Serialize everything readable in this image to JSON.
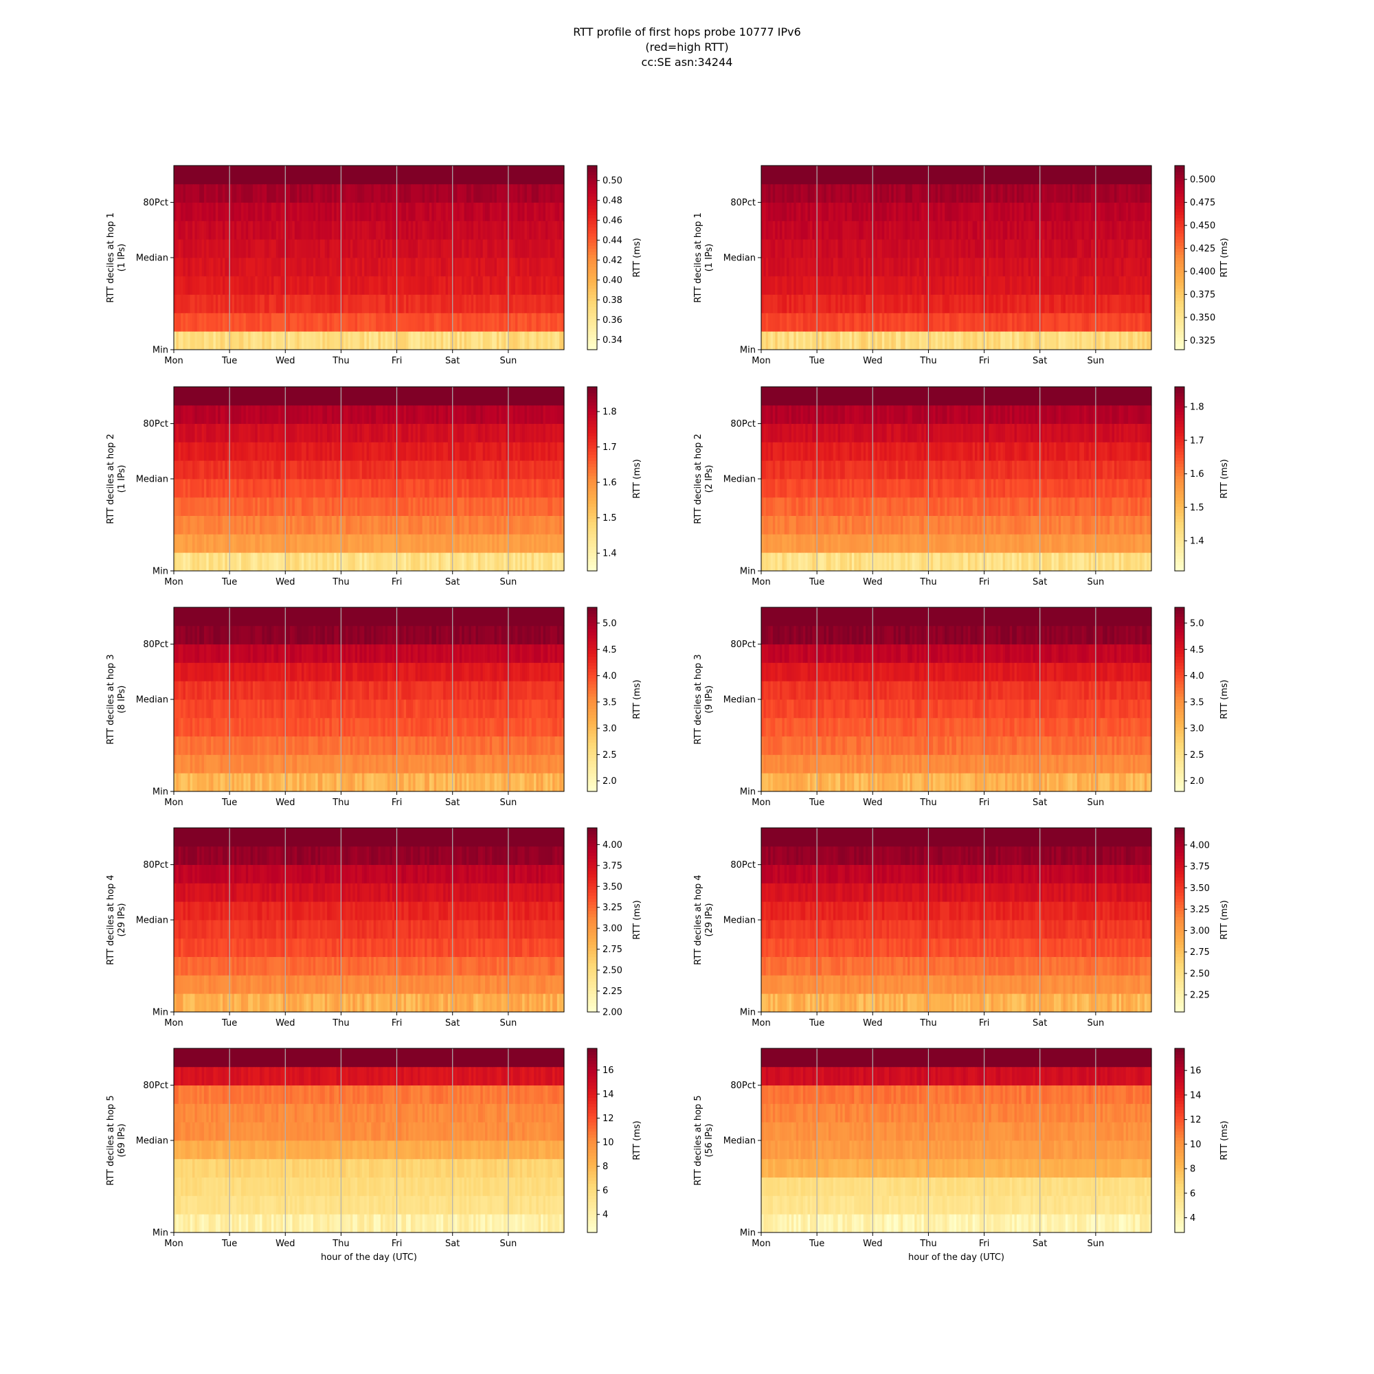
{
  "title_lines": [
    "RTT profile of first hops probe 10777 IPv6",
    "(red=high RTT)",
    "cc:SE asn:34244"
  ],
  "chart_data": [
    {
      "type": "heatmap",
      "panel": "hop1-left",
      "hop": 1,
      "ylabel": "RTT deciles at hop 1",
      "ylabel2": "(1 IPs)",
      "xticks": [
        "Mon",
        "Tue",
        "Wed",
        "Thu",
        "Fri",
        "Sat",
        "Sun"
      ],
      "yticks": [
        "Min",
        "Median",
        "80Pct"
      ],
      "cbar_label": "RTT (ms)",
      "cbar_range": [
        0.33,
        0.515
      ],
      "cbar_ticks": [
        "0.34",
        "0.36",
        "0.38",
        "0.40",
        "0.42",
        "0.44",
        "0.46",
        "0.48",
        "0.50"
      ],
      "deciles": [
        0.37,
        0.445,
        0.46,
        0.47,
        0.475,
        0.48,
        0.485,
        0.49,
        0.5,
        0.52
      ],
      "xlabel": ""
    },
    {
      "type": "heatmap",
      "panel": "hop1-right",
      "hop": 1,
      "ylabel": "RTT deciles at hop 1",
      "ylabel2": "(1 IPs)",
      "xticks": [
        "Mon",
        "Tue",
        "Wed",
        "Thu",
        "Fri",
        "Sat",
        "Sun"
      ],
      "yticks": [
        "Min",
        "Median",
        "80Pct"
      ],
      "cbar_label": "RTT (ms)",
      "cbar_range": [
        0.315,
        0.515
      ],
      "cbar_ticks": [
        "0.325",
        "0.350",
        "0.375",
        "0.400",
        "0.425",
        "0.450",
        "0.475",
        "0.500"
      ],
      "deciles": [
        0.36,
        0.445,
        0.46,
        0.47,
        0.475,
        0.48,
        0.485,
        0.49,
        0.5,
        0.52
      ],
      "xlabel": ""
    },
    {
      "type": "heatmap",
      "panel": "hop2-left",
      "hop": 2,
      "ylabel": "RTT deciles at hop 2",
      "ylabel2": "(1 IPs)",
      "xticks": [
        "Mon",
        "Tue",
        "Wed",
        "Thu",
        "Fri",
        "Sat",
        "Sun"
      ],
      "yticks": [
        "Min",
        "Median",
        "80Pct"
      ],
      "cbar_label": "RTT (ms)",
      "cbar_range": [
        1.35,
        1.87
      ],
      "cbar_ticks": [
        "1.4",
        "1.5",
        "1.6",
        "1.7",
        "1.8"
      ],
      "deciles": [
        1.45,
        1.58,
        1.62,
        1.65,
        1.68,
        1.71,
        1.74,
        1.77,
        1.81,
        1.88
      ],
      "xlabel": ""
    },
    {
      "type": "heatmap",
      "panel": "hop2-right",
      "hop": 2,
      "ylabel": "RTT deciles at hop 2",
      "ylabel2": "(2 IPs)",
      "xticks": [
        "Mon",
        "Tue",
        "Wed",
        "Thu",
        "Fri",
        "Sat",
        "Sun"
      ],
      "yticks": [
        "Min",
        "Median",
        "80Pct"
      ],
      "cbar_label": "RTT (ms)",
      "cbar_range": [
        1.31,
        1.86
      ],
      "cbar_ticks": [
        "1.4",
        "1.5",
        "1.6",
        "1.7",
        "1.8"
      ],
      "deciles": [
        1.42,
        1.56,
        1.6,
        1.63,
        1.66,
        1.69,
        1.72,
        1.76,
        1.8,
        1.87
      ],
      "xlabel": ""
    },
    {
      "type": "heatmap",
      "panel": "hop3-left",
      "hop": 3,
      "ylabel": "RTT deciles at hop 3",
      "ylabel2": "(8 IPs)",
      "xticks": [
        "Mon",
        "Tue",
        "Wed",
        "Thu",
        "Fri",
        "Sat",
        "Sun"
      ],
      "yticks": [
        "Min",
        "Median",
        "80Pct"
      ],
      "cbar_label": "RTT (ms)",
      "cbar_range": [
        1.8,
        5.3
      ],
      "cbar_ticks": [
        "2.0",
        "2.5",
        "3.0",
        "3.5",
        "4.0",
        "4.5",
        "5.0"
      ],
      "deciles": [
        3.1,
        3.55,
        3.75,
        3.95,
        4.05,
        4.2,
        4.45,
        4.8,
        5.2,
        5.4
      ],
      "xlabel": ""
    },
    {
      "type": "heatmap",
      "panel": "hop3-right",
      "hop": 3,
      "ylabel": "RTT deciles at hop 3",
      "ylabel2": "(9 IPs)",
      "xticks": [
        "Mon",
        "Tue",
        "Wed",
        "Thu",
        "Fri",
        "Sat",
        "Sun"
      ],
      "yticks": [
        "Min",
        "Median",
        "80Pct"
      ],
      "cbar_label": "RTT (ms)",
      "cbar_range": [
        1.8,
        5.3
      ],
      "cbar_ticks": [
        "2.0",
        "2.5",
        "3.0",
        "3.5",
        "4.0",
        "4.5",
        "5.0"
      ],
      "deciles": [
        3.1,
        3.55,
        3.75,
        3.9,
        4.05,
        4.2,
        4.45,
        4.8,
        5.2,
        5.4
      ],
      "xlabel": ""
    },
    {
      "type": "heatmap",
      "panel": "hop4-left",
      "hop": 4,
      "ylabel": "RTT deciles at hop 4",
      "ylabel2": "(29 IPs)",
      "xticks": [
        "Mon",
        "Tue",
        "Wed",
        "Thu",
        "Fri",
        "Sat",
        "Sun"
      ],
      "yticks": [
        "Min",
        "Median",
        "80Pct"
      ],
      "cbar_label": "RTT (ms)",
      "cbar_range": [
        2.0,
        4.2
      ],
      "cbar_ticks": [
        "2.00",
        "2.25",
        "2.50",
        "2.75",
        "3.00",
        "3.25",
        "3.50",
        "3.75",
        "4.00"
      ],
      "deciles": [
        2.85,
        3.1,
        3.25,
        3.4,
        3.5,
        3.6,
        3.75,
        3.9,
        4.1,
        4.3
      ],
      "xlabel": ""
    },
    {
      "type": "heatmap",
      "panel": "hop4-right",
      "hop": 4,
      "ylabel": "RTT deciles at hop 4",
      "ylabel2": "(29 IPs)",
      "xticks": [
        "Mon",
        "Tue",
        "Wed",
        "Thu",
        "Fri",
        "Sat",
        "Sun"
      ],
      "yticks": [
        "Min",
        "Median",
        "80Pct"
      ],
      "cbar_label": "RTT (ms)",
      "cbar_range": [
        2.05,
        4.2
      ],
      "cbar_ticks": [
        "2.25",
        "2.50",
        "2.75",
        "3.00",
        "3.25",
        "3.50",
        "3.75",
        "4.00"
      ],
      "deciles": [
        2.85,
        3.1,
        3.25,
        3.4,
        3.5,
        3.6,
        3.75,
        3.9,
        4.1,
        4.3
      ],
      "xlabel": ""
    },
    {
      "type": "heatmap",
      "panel": "hop5-left",
      "hop": 5,
      "ylabel": "RTT deciles at hop 5",
      "ylabel2": "(69 IPs)",
      "xticks": [
        "Mon",
        "Tue",
        "Wed",
        "Thu",
        "Fri",
        "Sat",
        "Sun"
      ],
      "yticks": [
        "Min",
        "Median",
        "80Pct"
      ],
      "cbar_label": "RTT (ms)",
      "cbar_range": [
        2.5,
        17.8
      ],
      "cbar_ticks": [
        "4",
        "6",
        "8",
        "10",
        "12",
        "14",
        "16"
      ],
      "deciles": [
        4.0,
        5.5,
        6.0,
        6.5,
        8.5,
        10.0,
        10.2,
        10.8,
        14.5,
        18.0
      ],
      "xlabel": "hour of the day (UTC)"
    },
    {
      "type": "heatmap",
      "panel": "hop5-right",
      "hop": 5,
      "ylabel": "RTT deciles at hop 5",
      "ylabel2": "(56 IPs)",
      "xticks": [
        "Mon",
        "Tue",
        "Wed",
        "Thu",
        "Fri",
        "Sat",
        "Sun"
      ],
      "yticks": [
        "Min",
        "Median",
        "80Pct"
      ],
      "cbar_label": "RTT (ms)",
      "cbar_range": [
        2.8,
        17.8
      ],
      "cbar_ticks": [
        "4",
        "6",
        "8",
        "10",
        "12",
        "14",
        "16"
      ],
      "deciles": [
        4.0,
        5.5,
        6.0,
        8.5,
        9.5,
        10.0,
        10.5,
        11.0,
        15.0,
        18.0
      ],
      "xlabel": "hour of the day (UTC)"
    }
  ]
}
